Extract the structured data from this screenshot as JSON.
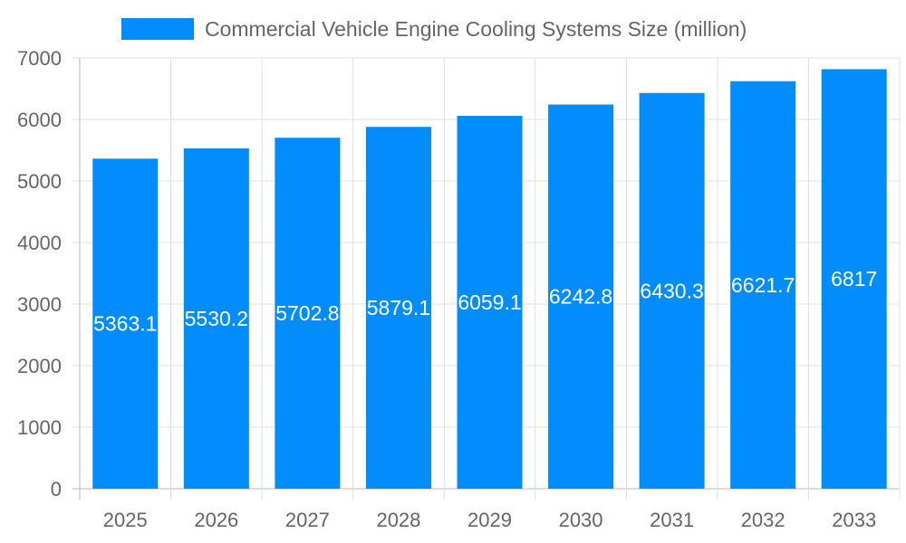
{
  "chart_data": {
    "type": "bar",
    "title": "",
    "xlabel": "",
    "ylabel": "",
    "categories": [
      "2025",
      "2026",
      "2027",
      "2028",
      "2029",
      "2030",
      "2031",
      "2032",
      "2033"
    ],
    "series": [
      {
        "name": "Commercial Vehicle Engine Cooling Systems Size (million)",
        "values": [
          5363.1,
          5530.2,
          5702.8,
          5879.1,
          6059.1,
          6242.8,
          6430.3,
          6621.7,
          6817
        ],
        "labels": [
          "5363.1",
          "5530.2",
          "5702.8",
          "5879.1",
          "6059.1",
          "6242.8",
          "6430.3",
          "6621.7",
          "6817"
        ]
      }
    ],
    "ylim": [
      0,
      7000
    ],
    "yticks": [
      "0",
      "1000",
      "2000",
      "3000",
      "4000",
      "5000",
      "6000",
      "7000"
    ],
    "grid": true,
    "legend": "top",
    "colors": {
      "bar": "#038cfc",
      "grid": "#e0e0e0",
      "text": "#666666"
    }
  }
}
